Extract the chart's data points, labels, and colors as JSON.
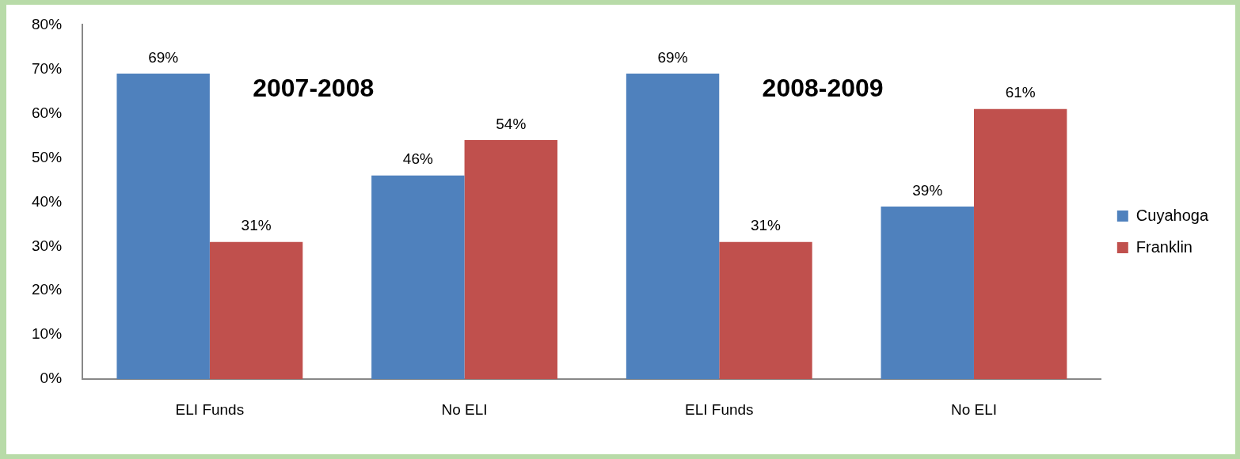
{
  "chart_data": {
    "type": "bar",
    "categories": [
      "ELI Funds",
      "No ELI",
      "ELI Funds",
      "No ELI"
    ],
    "series": [
      {
        "name": "Cuyahoga",
        "color": "#4f81bd",
        "values": [
          69,
          46,
          69,
          39
        ],
        "value_labels": [
          "69%",
          "46%",
          "69%",
          "39%"
        ]
      },
      {
        "name": "Franklin",
        "color": "#c0504d",
        "values": [
          31,
          54,
          31,
          61
        ],
        "value_labels": [
          "31%",
          "54%",
          "31%",
          "61%"
        ]
      }
    ],
    "ylim": [
      0,
      80
    ],
    "yticks": [
      {
        "value": 0,
        "label": "0%"
      },
      {
        "value": 10,
        "label": "10%"
      },
      {
        "value": 20,
        "label": "20%"
      },
      {
        "value": 30,
        "label": "30%"
      },
      {
        "value": 40,
        "label": "40%"
      },
      {
        "value": 50,
        "label": "50%"
      },
      {
        "value": 60,
        "label": "60%"
      },
      {
        "value": 70,
        "label": "70%"
      },
      {
        "value": 80,
        "label": "80%"
      }
    ],
    "annotations": [
      "2007-2008",
      "2008-2009"
    ],
    "legend": "right",
    "grid": false
  }
}
